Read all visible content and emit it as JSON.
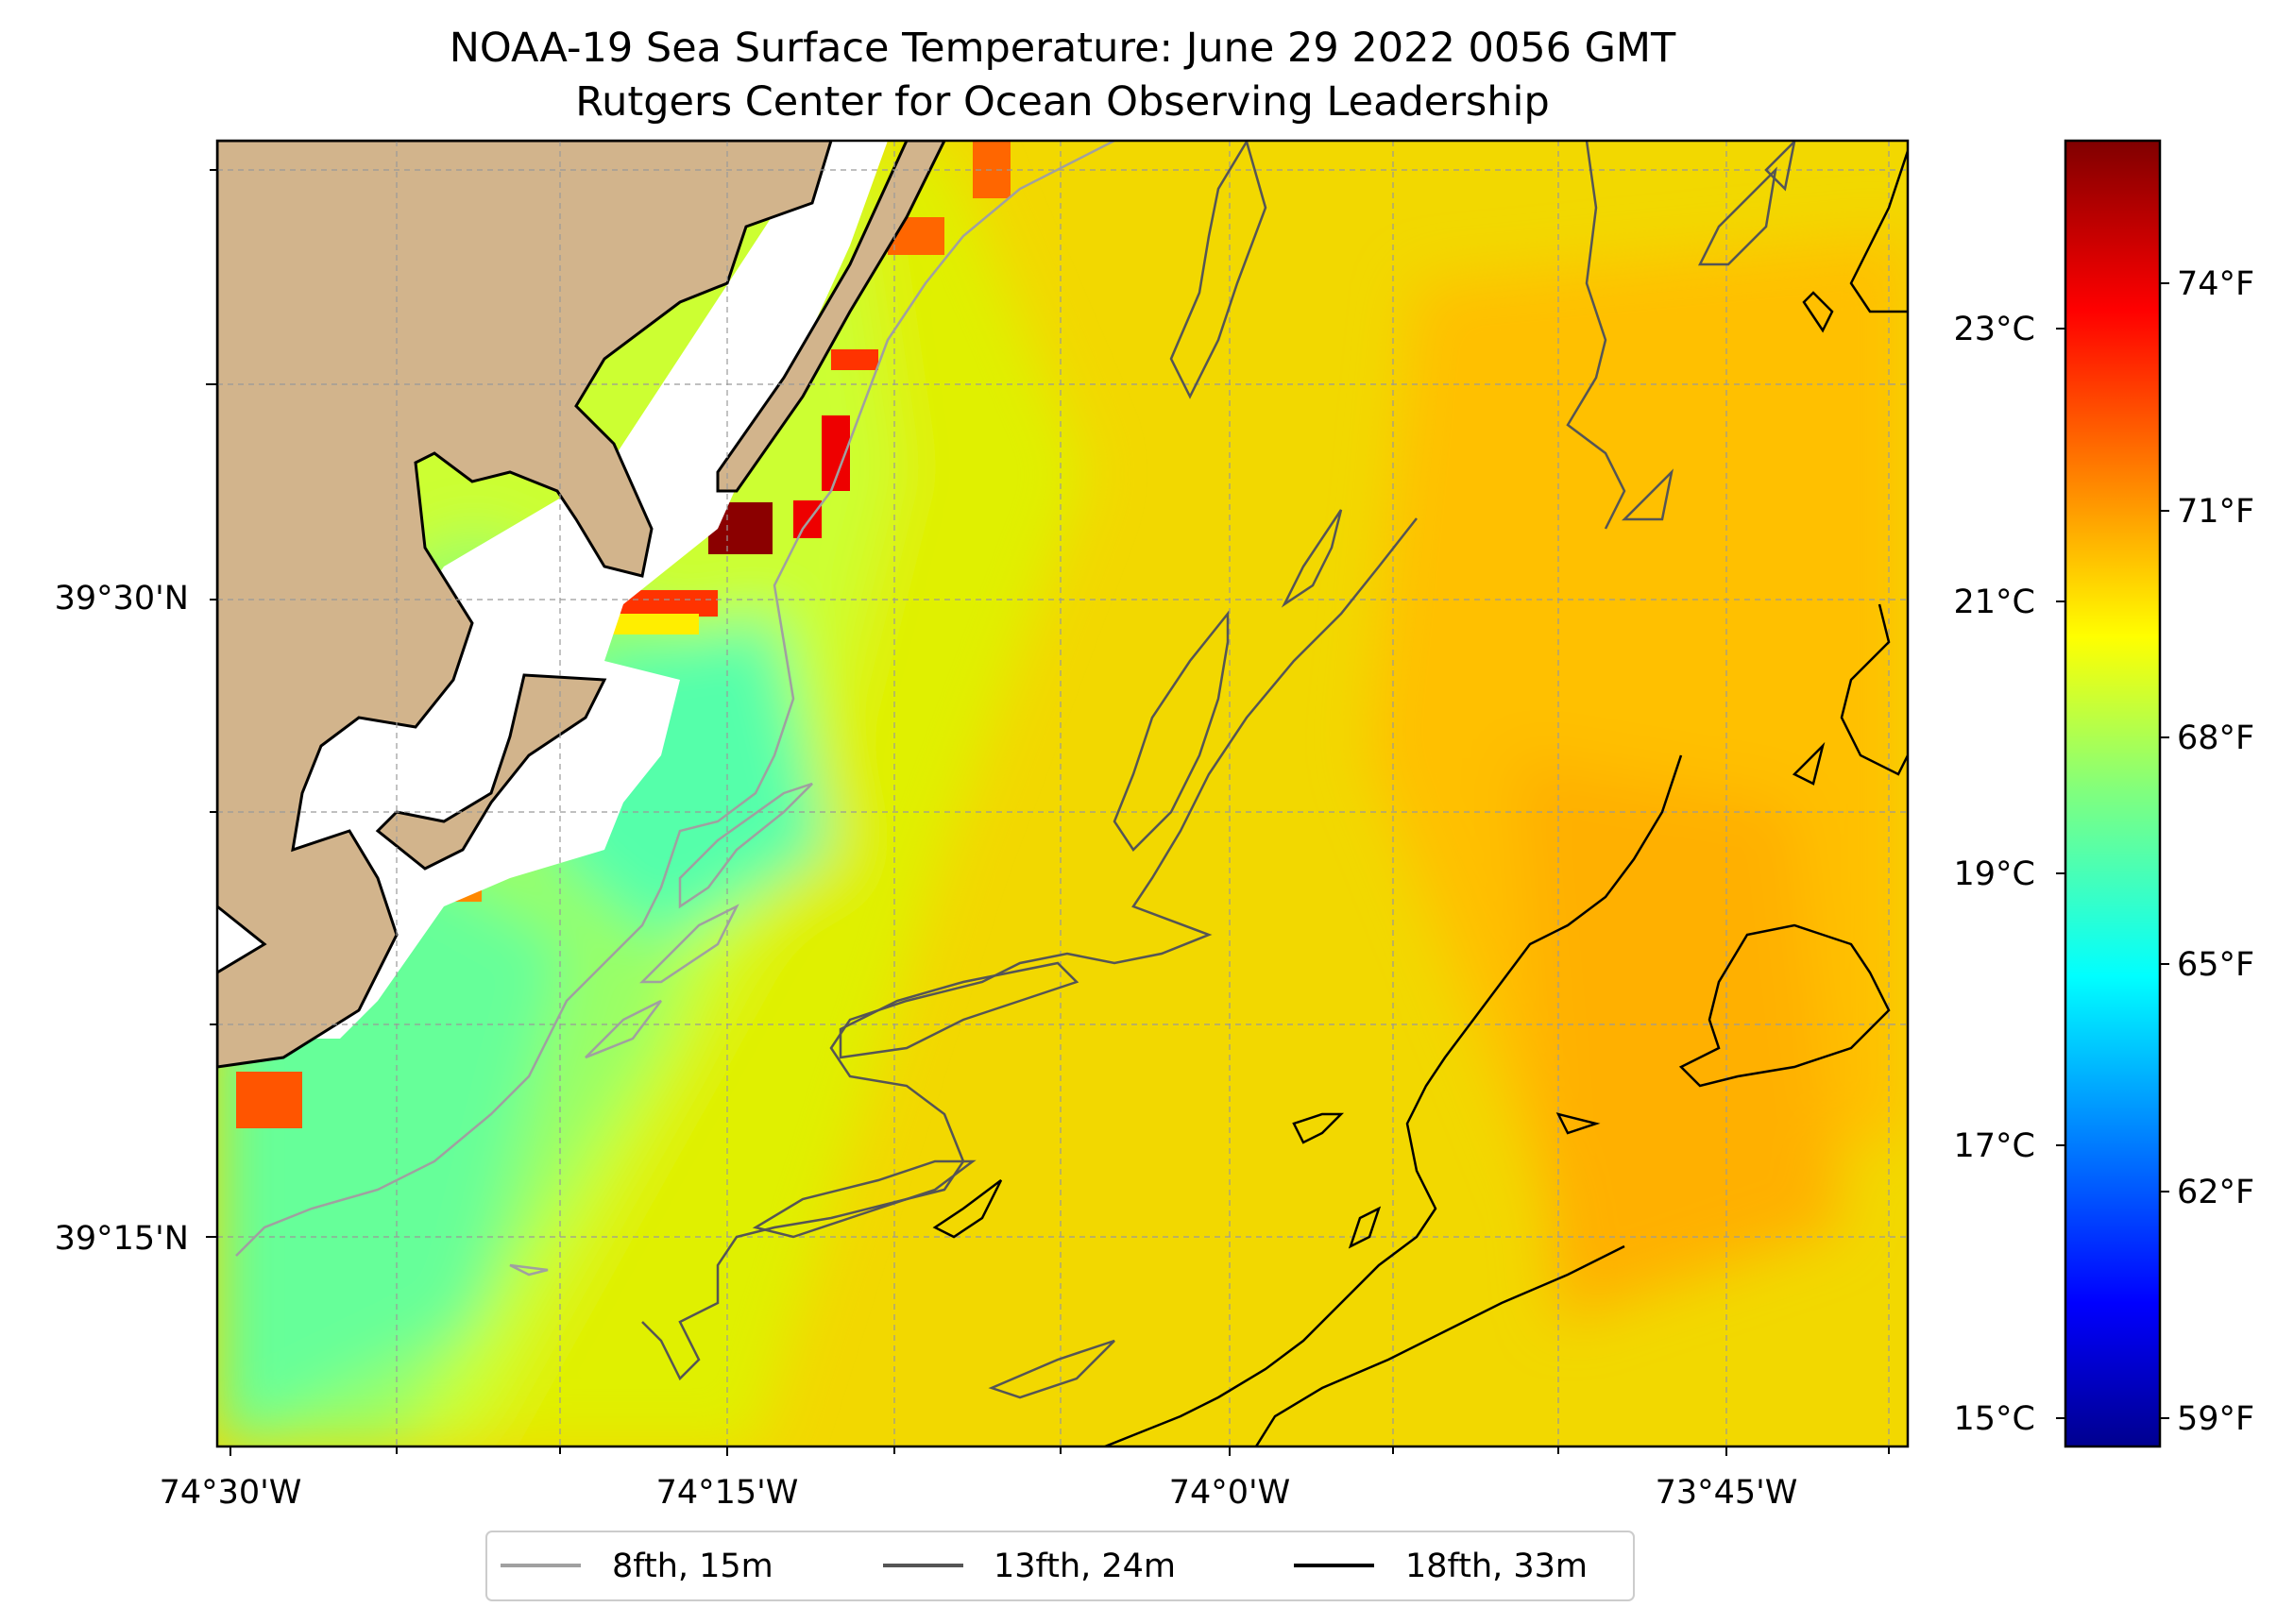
{
  "title": {
    "line1": "NOAA-19 Sea Surface Temperature: June 29 2022 0056 GMT",
    "line2": "Rutgers Center for Ocean Observing Leadership"
  },
  "map": {
    "x_ticks": [
      "74°30'W",
      "74°15'W",
      "74°0'W",
      "73°45'W"
    ],
    "y_ticks": [
      "39°30'N",
      "39°15'N"
    ],
    "land_color": "#d2b48c",
    "grid": true
  },
  "colorbar": {
    "celsius_ticks": [
      "23°C",
      "21°C",
      "19°C",
      "17°C",
      "15°C"
    ],
    "fahrenheit_ticks": [
      "74°F",
      "71°F",
      "68°F",
      "65°F",
      "62°F",
      "59°F"
    ],
    "colormap": "jet"
  },
  "legend": {
    "items": [
      {
        "label": "8fth, 15m",
        "color": "#a0a0a0"
      },
      {
        "label": "13fth, 24m",
        "color": "#555555"
      },
      {
        "label": "18fth, 33m",
        "color": "#000000"
      }
    ]
  }
}
